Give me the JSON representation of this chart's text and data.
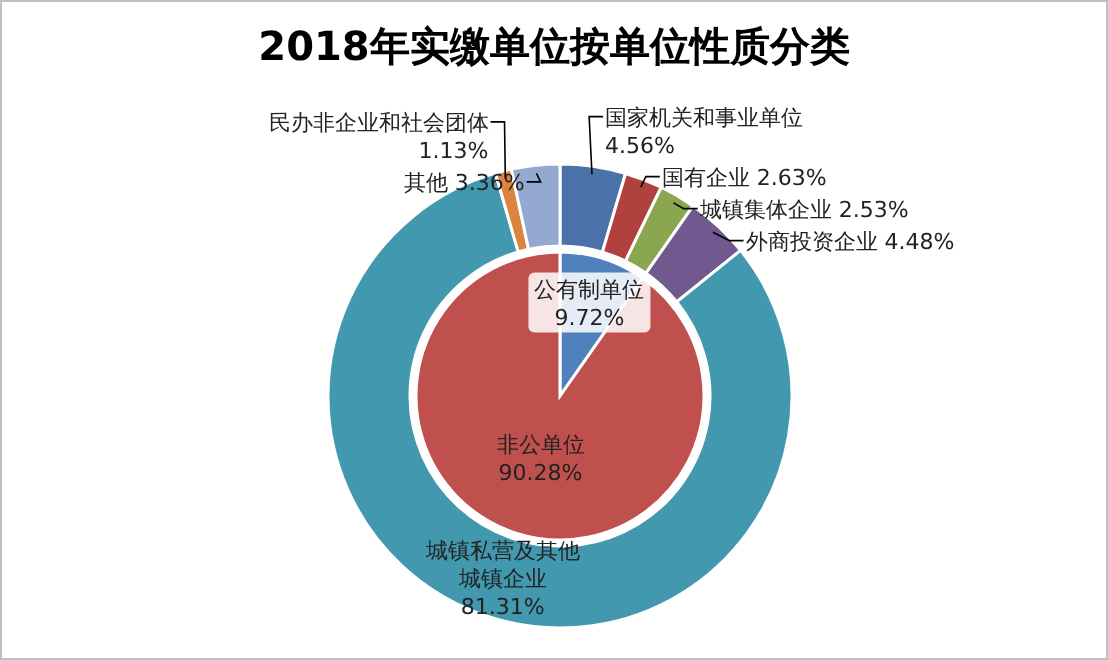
{
  "chart_data": [
    {
      "type": "donut",
      "title": "2018年实缴单位按单位性质分类",
      "categories": [
        "国家机关和事业单位",
        "国有企业",
        "城镇集体企业",
        "外商投资企业",
        "城镇私营及其他城镇企业",
        "民办非企业和社会团体",
        "其他"
      ],
      "values": [
        4.56,
        2.63,
        2.53,
        4.48,
        81.31,
        1.13,
        3.36
      ],
      "colors": [
        "#4a72a8",
        "#b0413e",
        "#8aa64f",
        "#71588f",
        "#4198af",
        "#db843d",
        "#93a9cf"
      ],
      "value_labels": [
        "4.56%",
        "2.63%",
        "2.53%",
        "4.48%",
        "81.31%",
        "1.13%",
        "3.36%"
      ]
    },
    {
      "type": "pie",
      "categories": [
        "公有制单位",
        "非公单位"
      ],
      "values": [
        9.72,
        90.28
      ],
      "colors": [
        "#4f81bd",
        "#c0504d"
      ],
      "value_labels": [
        "9.72%",
        "90.28%"
      ]
    }
  ]
}
